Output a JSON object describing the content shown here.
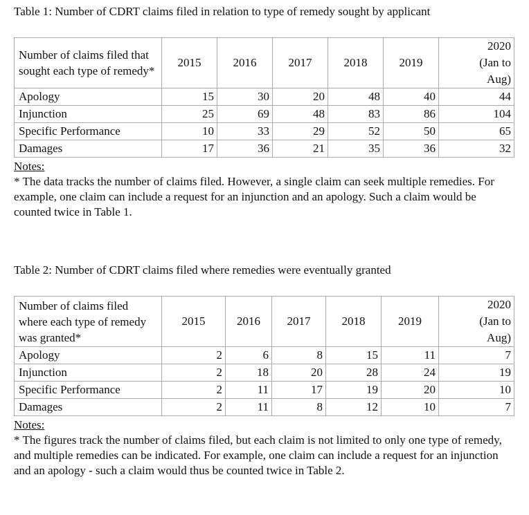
{
  "table1": {
    "caption": "Table 1: Number of CDRT claims filed in relation to type of remedy sought by applicant",
    "header": [
      "Number of claims filed that sought each type of remedy*",
      "2015",
      "2016",
      "2017",
      "2018",
      "2019",
      "2020 (Jan to Aug)"
    ],
    "rows": [
      [
        "Apology",
        15,
        30,
        20,
        48,
        40,
        44
      ],
      [
        "Injunction",
        25,
        69,
        48,
        83,
        86,
        104
      ],
      [
        "Specific Performance",
        10,
        33,
        29,
        52,
        50,
        65
      ],
      [
        "Damages",
        17,
        36,
        21,
        35,
        36,
        32
      ]
    ],
    "notes_heading": "Notes:",
    "note": "* The data tracks the number of claims filed. However, a single claim can seek multiple remedies. For example, one claim can include a request for an injunction and an apology. Such a claim would be counted twice in Table 1."
  },
  "table2": {
    "caption": "Table 2: Number of CDRT claims filed where remedies were eventually granted",
    "header": [
      "Number of claims filed where each type of remedy was granted*",
      "2015",
      "2016",
      "2017",
      "2018",
      "2019",
      "2020 (Jan to Aug)"
    ],
    "rows": [
      [
        "Apology",
        2,
        6,
        8,
        15,
        11,
        7
      ],
      [
        "Injunction",
        2,
        18,
        20,
        28,
        24,
        19
      ],
      [
        "Specific Performance",
        2,
        11,
        17,
        19,
        20,
        10
      ],
      [
        "Damages",
        2,
        11,
        8,
        12,
        10,
        7
      ]
    ],
    "notes_heading": "Notes:",
    "note": "* The figures track the number of claims filed, but each claim is not limited to only one type of remedy, and multiple remedies can be indicated. For example, one claim can include a request for an injunction and an apology - such a claim would thus be counted twice in Table 2."
  }
}
